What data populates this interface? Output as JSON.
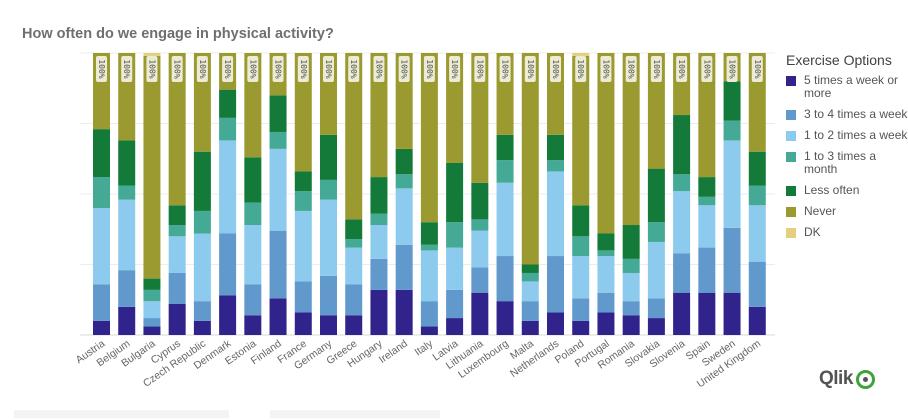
{
  "title": "How often do we engage in physical activity?",
  "legend": {
    "title": "Exercise Options",
    "items": [
      {
        "label": "5 times a week or more",
        "color": "#30248c"
      },
      {
        "label": "3 to 4 times a week",
        "color": "#6199cd"
      },
      {
        "label": "1 to 2 times a week",
        "color": "#8ccbed"
      },
      {
        "label": "1 to 3 times a month",
        "color": "#44a995"
      },
      {
        "label": "Less often",
        "color": "#147a3a"
      },
      {
        "label": "Never",
        "color": "#9b9a31"
      },
      {
        "label": "DK",
        "color": "#e3d07e"
      }
    ]
  },
  "logo": {
    "text": "Qlik"
  },
  "chart_data": {
    "type": "bar",
    "stacked": true,
    "title": "How often do we engage in physical activity?",
    "xlabel": "",
    "ylabel": "",
    "ylim": [
      0,
      100
    ],
    "grid": true,
    "legend_position": "right",
    "total_label": "100%",
    "categories": [
      "Austria",
      "Belgium",
      "Bulgaria",
      "Cyprus",
      "Czech Republic",
      "Denmark",
      "Estonia",
      "Finland",
      "France",
      "Germany",
      "Greece",
      "Hungary",
      "Ireland",
      "Italy",
      "Latvia",
      "Lithuania",
      "Luxembourg",
      "Malta",
      "Netherlands",
      "Poland",
      "Portugal",
      "Romania",
      "Slovakia",
      "Slovenia",
      "Spain",
      "Sweden",
      "United Kingdom"
    ],
    "series": [
      {
        "name": "5 times a week or more",
        "values": [
          5,
          10,
          3,
          11,
          5,
          14,
          7,
          13,
          8,
          7,
          7,
          16,
          16,
          3,
          6,
          15,
          12,
          5,
          8,
          5,
          8,
          7,
          6,
          15,
          15,
          15,
          10
        ]
      },
      {
        "name": "3 to 4 times a week",
        "values": [
          13,
          13,
          3,
          11,
          7,
          22,
          11,
          24,
          11,
          14,
          11,
          11,
          16,
          9,
          10,
          9,
          16,
          7,
          20,
          8,
          7,
          5,
          7,
          14,
          16,
          23,
          16
        ]
      },
      {
        "name": "1 to 2 times a week",
        "values": [
          27,
          25,
          6,
          13,
          24,
          33,
          21,
          29,
          25,
          27,
          13,
          12,
          20,
          18,
          15,
          13,
          26,
          7,
          30,
          15,
          13,
          10,
          20,
          22,
          15,
          31,
          20
        ]
      },
      {
        "name": "1 to 3 times a month",
        "values": [
          11,
          5,
          4,
          4,
          8,
          8,
          8,
          6,
          7,
          7,
          3,
          4,
          5,
          2,
          9,
          4,
          8,
          3,
          4,
          7,
          2,
          5,
          7,
          6,
          3,
          7,
          7
        ]
      },
      {
        "name": "Less often",
        "values": [
          17,
          16,
          4,
          7,
          21,
          10,
          16,
          13,
          7,
          16,
          7,
          13,
          9,
          8,
          21,
          13,
          9,
          3,
          9,
          11,
          6,
          12,
          19,
          21,
          7,
          14,
          12
        ]
      },
      {
        "name": "Never",
        "values": [
          27,
          31,
          79,
          54,
          35,
          13,
          37,
          15,
          42,
          29,
          59,
          44,
          34,
          60,
          39,
          46,
          29,
          75,
          29,
          53,
          64,
          61,
          41,
          22,
          44,
          10,
          35
        ]
      },
      {
        "name": "DK",
        "values": [
          0,
          0,
          1,
          0,
          0,
          0,
          0,
          0,
          0,
          0,
          0,
          0,
          0,
          0,
          0,
          0,
          0,
          0,
          0,
          1,
          0,
          0,
          0,
          0,
          0,
          0,
          0
        ]
      }
    ]
  }
}
